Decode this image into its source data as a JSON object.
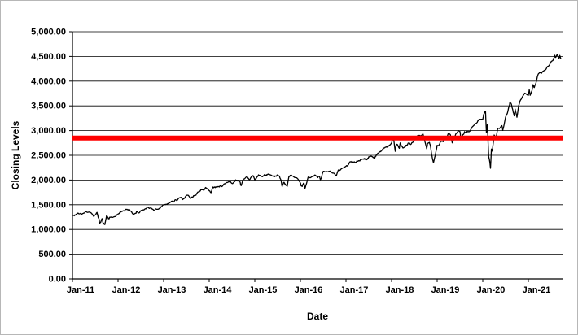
{
  "chart_data": {
    "type": "line",
    "title": "",
    "xlabel": "Date",
    "ylabel": "Closing Levels",
    "ylim": [
      0,
      5000
    ],
    "ytick_step": 500,
    "ytick_labels": [
      "0.00",
      "500.00",
      "1,000.00",
      "1,500.00",
      "2,000.00",
      "2,500.00",
      "3,000.00",
      "3,500.00",
      "4,000.00",
      "4,500.00",
      "5,000.00"
    ],
    "xlim": [
      0,
      10.75
    ],
    "xticks": [
      0,
      1,
      2,
      3,
      4,
      5,
      6,
      7,
      8,
      9,
      10
    ],
    "xtick_labels": [
      "Jan-11",
      "Jan-12",
      "Jan-13",
      "Jan-14",
      "Jan-15",
      "Jan-16",
      "Jan-17",
      "Jan-18",
      "Jan-19",
      "Jan-20",
      "Jan-21"
    ],
    "grid": true,
    "legend": "none",
    "reference_line": {
      "name": "horizontal-threshold-line",
      "value": 2850,
      "color": "#FF0000",
      "width": 6
    },
    "series": [
      {
        "name": "closing-levels",
        "color": "#000000",
        "width": 1.3,
        "points": [
          [
            0.0,
            1283
          ],
          [
            0.04,
            1276
          ],
          [
            0.08,
            1307
          ],
          [
            0.13,
            1327
          ],
          [
            0.17,
            1320
          ],
          [
            0.21,
            1313
          ],
          [
            0.25,
            1332
          ],
          [
            0.29,
            1364
          ],
          [
            0.33,
            1345
          ],
          [
            0.38,
            1347
          ],
          [
            0.42,
            1321
          ],
          [
            0.46,
            1268
          ],
          [
            0.5,
            1292
          ],
          [
            0.54,
            1345
          ],
          [
            0.56,
            1260
          ],
          [
            0.58,
            1218
          ],
          [
            0.6,
            1120
          ],
          [
            0.63,
            1174
          ],
          [
            0.65,
            1218
          ],
          [
            0.67,
            1131
          ],
          [
            0.71,
            1099
          ],
          [
            0.73,
            1195
          ],
          [
            0.75,
            1285
          ],
          [
            0.77,
            1253
          ],
          [
            0.79,
            1215
          ],
          [
            0.83,
            1247
          ],
          [
            0.88,
            1244
          ],
          [
            0.92,
            1258
          ],
          [
            0.96,
            1278
          ],
          [
            1.0,
            1312
          ],
          [
            1.04,
            1345
          ],
          [
            1.08,
            1366
          ],
          [
            1.13,
            1374
          ],
          [
            1.17,
            1408
          ],
          [
            1.21,
            1398
          ],
          [
            1.25,
            1403
          ],
          [
            1.29,
            1370
          ],
          [
            1.33,
            1310
          ],
          [
            1.38,
            1325
          ],
          [
            1.42,
            1362
          ],
          [
            1.46,
            1335
          ],
          [
            1.5,
            1379
          ],
          [
            1.54,
            1390
          ],
          [
            1.58,
            1407
          ],
          [
            1.63,
            1437
          ],
          [
            1.67,
            1441
          ],
          [
            1.71,
            1433
          ],
          [
            1.75,
            1412
          ],
          [
            1.79,
            1380
          ],
          [
            1.83,
            1416
          ],
          [
            1.88,
            1409
          ],
          [
            1.92,
            1426
          ],
          [
            1.96,
            1462
          ],
          [
            2.0,
            1498
          ],
          [
            2.04,
            1502
          ],
          [
            2.08,
            1515
          ],
          [
            2.13,
            1540
          ],
          [
            2.17,
            1569
          ],
          [
            2.21,
            1555
          ],
          [
            2.25,
            1598
          ],
          [
            2.29,
            1582
          ],
          [
            2.33,
            1631
          ],
          [
            2.38,
            1650
          ],
          [
            2.42,
            1606
          ],
          [
            2.46,
            1632
          ],
          [
            2.5,
            1686
          ],
          [
            2.54,
            1690
          ],
          [
            2.58,
            1633
          ],
          [
            2.63,
            1655
          ],
          [
            2.67,
            1682
          ],
          [
            2.71,
            1695
          ],
          [
            2.75,
            1757
          ],
          [
            2.79,
            1770
          ],
          [
            2.83,
            1806
          ],
          [
            2.88,
            1790
          ],
          [
            2.92,
            1848
          ],
          [
            3.0,
            1783
          ],
          [
            3.04,
            1742
          ],
          [
            3.08,
            1859
          ],
          [
            3.13,
            1845
          ],
          [
            3.17,
            1872
          ],
          [
            3.21,
            1865
          ],
          [
            3.25,
            1884
          ],
          [
            3.29,
            1875
          ],
          [
            3.33,
            1924
          ],
          [
            3.38,
            1950
          ],
          [
            3.42,
            1960
          ],
          [
            3.46,
            1978
          ],
          [
            3.5,
            1931
          ],
          [
            3.54,
            1955
          ],
          [
            3.58,
            2003
          ],
          [
            3.63,
            1988
          ],
          [
            3.67,
            1972
          ],
          [
            3.7,
            1886
          ],
          [
            3.75,
            2018
          ],
          [
            3.79,
            2040
          ],
          [
            3.83,
            2068
          ],
          [
            3.88,
            2002
          ],
          [
            3.92,
            2059
          ],
          [
            3.96,
            2090
          ],
          [
            4.0,
            1995
          ],
          [
            4.04,
            2050
          ],
          [
            4.08,
            2105
          ],
          [
            4.13,
            2080
          ],
          [
            4.17,
            2068
          ],
          [
            4.21,
            2108
          ],
          [
            4.25,
            2086
          ],
          [
            4.29,
            2122
          ],
          [
            4.33,
            2107
          ],
          [
            4.38,
            2080
          ],
          [
            4.42,
            2063
          ],
          [
            4.46,
            2077
          ],
          [
            4.5,
            2104
          ],
          [
            4.54,
            2080
          ],
          [
            4.58,
            1972
          ],
          [
            4.6,
            1868
          ],
          [
            4.63,
            1950
          ],
          [
            4.67,
            1920
          ],
          [
            4.71,
            1872
          ],
          [
            4.75,
            2079
          ],
          [
            4.79,
            2090
          ],
          [
            4.83,
            2080
          ],
          [
            4.88,
            2050
          ],
          [
            4.92,
            2044
          ],
          [
            5.0,
            1940
          ],
          [
            5.02,
            1880
          ],
          [
            5.04,
            1870
          ],
          [
            5.06,
            1920
          ],
          [
            5.08,
            1932
          ],
          [
            5.1,
            1829
          ],
          [
            5.13,
            1918
          ],
          [
            5.17,
            2060
          ],
          [
            5.21,
            2050
          ],
          [
            5.25,
            2065
          ],
          [
            5.29,
            2080
          ],
          [
            5.33,
            2097
          ],
          [
            5.38,
            2050
          ],
          [
            5.42,
            2075
          ],
          [
            5.44,
            2001
          ],
          [
            5.5,
            2174
          ],
          [
            5.54,
            2165
          ],
          [
            5.58,
            2171
          ],
          [
            5.63,
            2180
          ],
          [
            5.67,
            2168
          ],
          [
            5.71,
            2140
          ],
          [
            5.75,
            2126
          ],
          [
            5.79,
            2085
          ],
          [
            5.83,
            2199
          ],
          [
            5.88,
            2205
          ],
          [
            5.92,
            2239
          ],
          [
            6.0,
            2279
          ],
          [
            6.04,
            2295
          ],
          [
            6.08,
            2364
          ],
          [
            6.13,
            2380
          ],
          [
            6.17,
            2363
          ],
          [
            6.21,
            2355
          ],
          [
            6.25,
            2384
          ],
          [
            6.29,
            2390
          ],
          [
            6.33,
            2412
          ],
          [
            6.38,
            2430
          ],
          [
            6.42,
            2423
          ],
          [
            6.46,
            2410
          ],
          [
            6.5,
            2470
          ],
          [
            6.54,
            2478
          ],
          [
            6.58,
            2472
          ],
          [
            6.63,
            2440
          ],
          [
            6.67,
            2519
          ],
          [
            6.71,
            2545
          ],
          [
            6.75,
            2575
          ],
          [
            6.79,
            2600
          ],
          [
            6.83,
            2648
          ],
          [
            6.88,
            2665
          ],
          [
            6.92,
            2674
          ],
          [
            7.0,
            2750
          ],
          [
            7.04,
            2873
          ],
          [
            7.08,
            2581
          ],
          [
            7.1,
            2715
          ],
          [
            7.13,
            2714
          ],
          [
            7.17,
            2641
          ],
          [
            7.19,
            2750
          ],
          [
            7.21,
            2700
          ],
          [
            7.25,
            2648
          ],
          [
            7.29,
            2670
          ],
          [
            7.33,
            2705
          ],
          [
            7.38,
            2750
          ],
          [
            7.42,
            2718
          ],
          [
            7.46,
            2760
          ],
          [
            7.5,
            2816
          ],
          [
            7.54,
            2850
          ],
          [
            7.58,
            2902
          ],
          [
            7.63,
            2896
          ],
          [
            7.67,
            2914
          ],
          [
            7.69,
            2931
          ],
          [
            7.75,
            2712
          ],
          [
            7.77,
            2633
          ],
          [
            7.79,
            2740
          ],
          [
            7.83,
            2760
          ],
          [
            7.85,
            2700
          ],
          [
            7.88,
            2506
          ],
          [
            7.9,
            2416
          ],
          [
            7.92,
            2351
          ],
          [
            7.96,
            2507
          ],
          [
            8.0,
            2704
          ],
          [
            8.04,
            2707
          ],
          [
            8.08,
            2784
          ],
          [
            8.13,
            2775
          ],
          [
            8.17,
            2834
          ],
          [
            8.21,
            2867
          ],
          [
            8.25,
            2946
          ],
          [
            8.29,
            2917
          ],
          [
            8.33,
            2752
          ],
          [
            8.38,
            2873
          ],
          [
            8.42,
            2942
          ],
          [
            8.46,
            2995
          ],
          [
            8.5,
            2980
          ],
          [
            8.52,
            2847
          ],
          [
            8.54,
            2888
          ],
          [
            8.58,
            2926
          ],
          [
            8.6,
            2978
          ],
          [
            8.63,
            2961
          ],
          [
            8.67,
            2977
          ],
          [
            8.71,
            2986
          ],
          [
            8.75,
            3038
          ],
          [
            8.79,
            3090
          ],
          [
            8.83,
            3141
          ],
          [
            8.88,
            3168
          ],
          [
            8.92,
            3231
          ],
          [
            9.0,
            3226
          ],
          [
            9.02,
            3325
          ],
          [
            9.06,
            3386
          ],
          [
            9.08,
            2954
          ],
          [
            9.1,
            3130
          ],
          [
            9.13,
            2481
          ],
          [
            9.15,
            2386
          ],
          [
            9.17,
            2237
          ],
          [
            9.19,
            2626
          ],
          [
            9.21,
            2585
          ],
          [
            9.25,
            2912
          ],
          [
            9.29,
            2848
          ],
          [
            9.33,
            3044
          ],
          [
            9.38,
            3055
          ],
          [
            9.42,
            3100
          ],
          [
            9.44,
            3009
          ],
          [
            9.5,
            3271
          ],
          [
            9.54,
            3350
          ],
          [
            9.58,
            3500
          ],
          [
            9.6,
            3580
          ],
          [
            9.63,
            3527
          ],
          [
            9.67,
            3363
          ],
          [
            9.69,
            3298
          ],
          [
            9.71,
            3435
          ],
          [
            9.75,
            3270
          ],
          [
            9.79,
            3510
          ],
          [
            9.83,
            3622
          ],
          [
            9.88,
            3700
          ],
          [
            9.92,
            3756
          ],
          [
            10.0,
            3714
          ],
          [
            10.02,
            3826
          ],
          [
            10.04,
            3714
          ],
          [
            10.08,
            3811
          ],
          [
            10.1,
            3930
          ],
          [
            10.13,
            3870
          ],
          [
            10.17,
            3973
          ],
          [
            10.21,
            4130
          ],
          [
            10.25,
            4181
          ],
          [
            10.29,
            4160
          ],
          [
            10.33,
            4204
          ],
          [
            10.38,
            4230
          ],
          [
            10.42,
            4298
          ],
          [
            10.46,
            4320
          ],
          [
            10.5,
            4395
          ],
          [
            10.54,
            4420
          ],
          [
            10.58,
            4523
          ],
          [
            10.6,
            4480
          ],
          [
            10.63,
            4537
          ],
          [
            10.67,
            4455
          ],
          [
            10.69,
            4520
          ],
          [
            10.71,
            4460
          ]
        ]
      }
    ]
  },
  "colors": {
    "line": "#000000",
    "reference": "#FF0000",
    "grid": "#000000",
    "axis": "#000000",
    "text": "#000000",
    "background": "#FFFFFF",
    "border": "#B7B7B7"
  }
}
